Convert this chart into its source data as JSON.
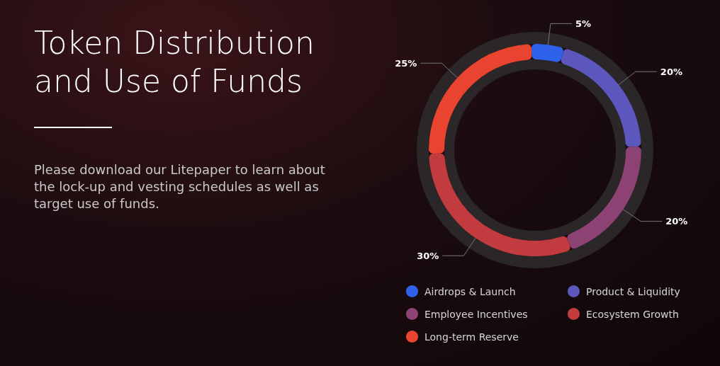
{
  "chart_data": {
    "type": "donut",
    "title": "Token Distribution and Use of Funds",
    "subtitle": "Please download our Litepaper to learn about the lock-up and vesting schedules as well as target use of funds.",
    "categories": [
      "Airdrops & Launch",
      "Product & Liquidity",
      "Employee Incentives",
      "Ecosystem Growth",
      "Long-term Reserve"
    ],
    "values": [
      5,
      20,
      20,
      30,
      25
    ],
    "value_labels": [
      "5%",
      "20%",
      "20%",
      "30%",
      "25%"
    ],
    "colors": [
      "#2f62ea",
      "#5b57bd",
      "#8c4272",
      "#c23b3f",
      "#e8442f"
    ],
    "legend": "bottom"
  }
}
